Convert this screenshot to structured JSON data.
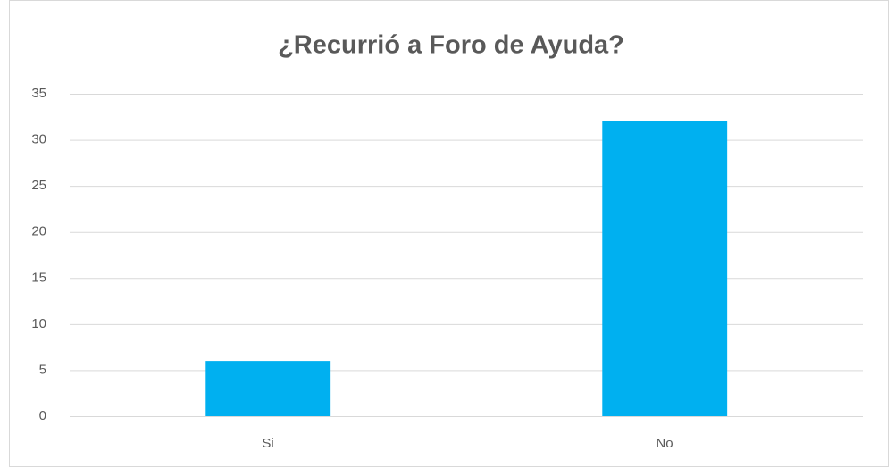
{
  "chart_data": {
    "type": "bar",
    "title": "¿Recurrió a Foro de Ayuda?",
    "categories": [
      "Si",
      "No"
    ],
    "values": [
      6,
      32
    ],
    "color": "#00b0f0",
    "ylim": [
      0,
      35
    ],
    "yticks": [
      0,
      5,
      10,
      15,
      20,
      25,
      30,
      35
    ],
    "grid": true
  }
}
